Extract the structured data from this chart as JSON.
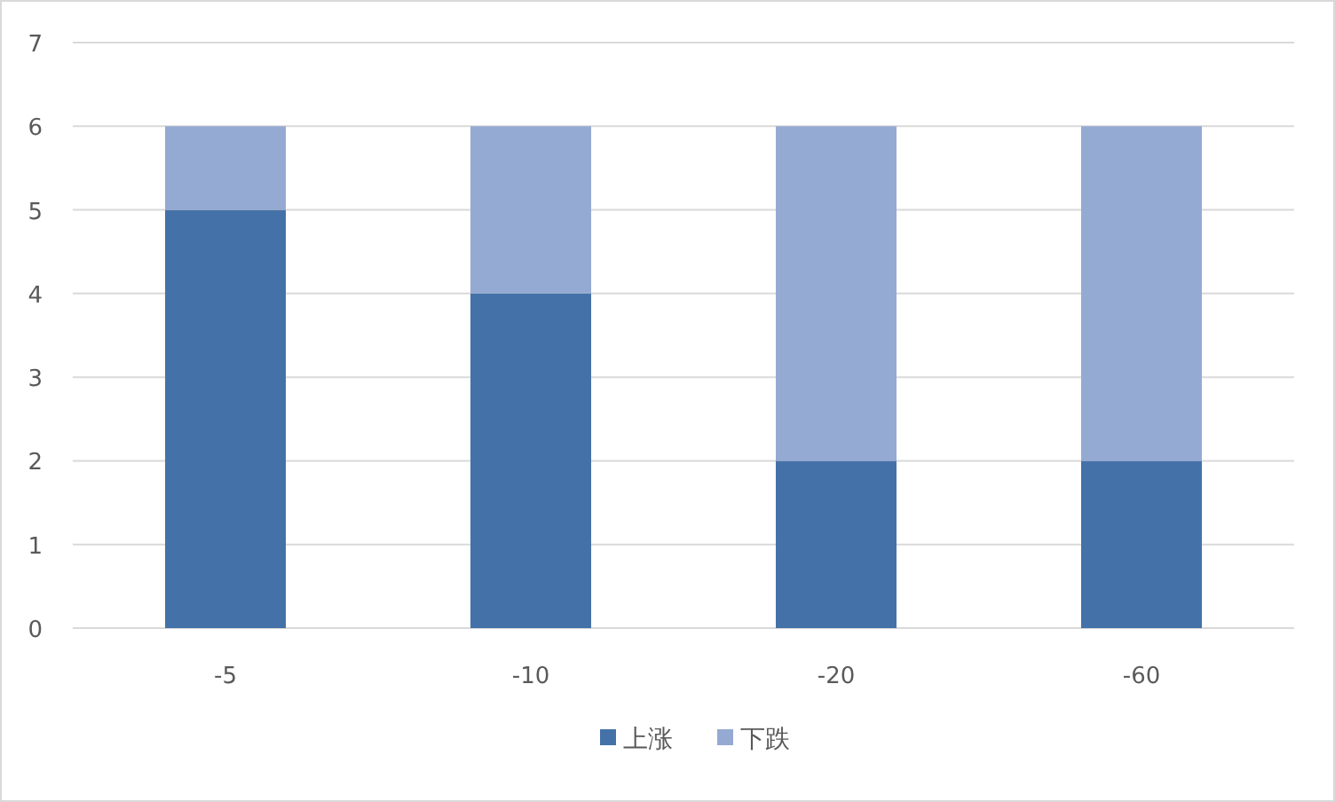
{
  "chart_data": {
    "type": "bar",
    "stacked": true,
    "categories": [
      "-5",
      "-10",
      "-20",
      "-60"
    ],
    "series": [
      {
        "name": "上涨",
        "color": "#4472a8",
        "values": [
          5,
          4,
          2,
          2
        ]
      },
      {
        "name": "下跌",
        "color": "#95aad2",
        "values": [
          1,
          2,
          4,
          4
        ]
      }
    ],
    "ylim": [
      0,
      7
    ],
    "yticks": [
      0,
      1,
      2,
      3,
      4,
      5,
      6,
      7
    ],
    "grid": "y",
    "legend": "bottom"
  }
}
